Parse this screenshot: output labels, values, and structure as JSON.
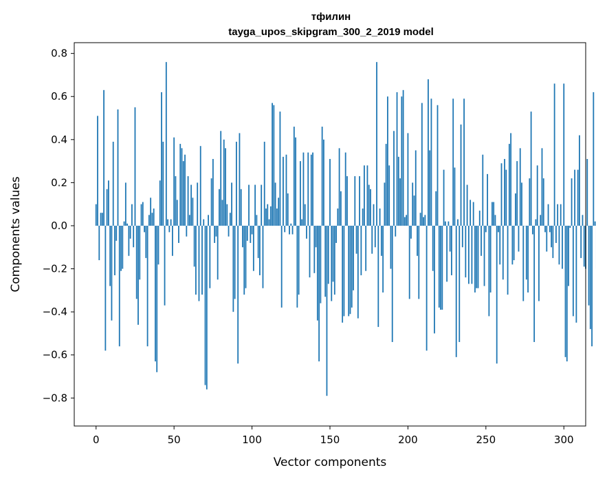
{
  "chart_data": {
    "type": "bar",
    "title": "тфилин",
    "subtitle": "tayga_upos_skipgram_300_2_2019 model",
    "xlabel": "Vector components",
    "ylabel": "Components values",
    "xlim": [
      -14,
      314
    ],
    "ylim": [
      -0.93,
      0.85
    ],
    "xticks": [
      0,
      50,
      100,
      150,
      200,
      250,
      300
    ],
    "yticks": [
      -0.8,
      -0.6,
      -0.4,
      -0.2,
      0.0,
      0.2,
      0.4,
      0.6,
      0.8
    ],
    "ytick_labels": [
      "−0.8",
      "−0.6",
      "−0.4",
      "−0.2",
      "0.0",
      "0.2",
      "0.4",
      "0.6",
      "0.8"
    ],
    "xtick_labels": [
      "0",
      "50",
      "100",
      "150",
      "200",
      "250",
      "300"
    ],
    "grid": false,
    "bar_color": "#1f77b4",
    "values": [
      0.1,
      0.51,
      -0.16,
      0.06,
      0.06,
      0.63,
      -0.58,
      0.17,
      0.21,
      -0.28,
      -0.44,
      0.39,
      -0.23,
      -0.07,
      0.54,
      -0.56,
      -0.21,
      -0.2,
      0.02,
      0.2,
      0.01,
      -0.14,
      -0.06,
      0.1,
      -0.1,
      0.55,
      -0.34,
      -0.46,
      -0.25,
      0.1,
      0.11,
      -0.03,
      -0.15,
      -0.56,
      0.05,
      0.13,
      0.06,
      0.08,
      -0.63,
      -0.68,
      -0.18,
      0.21,
      0.62,
      0.39,
      -0.37,
      0.76,
      0.03,
      -0.03,
      0.03,
      -0.14,
      0.41,
      0.23,
      0.12,
      -0.08,
      0.38,
      0.36,
      0.3,
      0.33,
      -0.05,
      0.23,
      0.05,
      0.19,
      0.13,
      -0.19,
      -0.32,
      0.2,
      -0.35,
      0.37,
      -0.32,
      0.03,
      -0.74,
      -0.76,
      0.05,
      -0.29,
      0.22,
      0.31,
      -0.08,
      -0.05,
      -0.25,
      0.17,
      0.44,
      0.12,
      0.4,
      0.36,
      0.1,
      -0.05,
      0.06,
      0.2,
      -0.4,
      -0.34,
      0.39,
      -0.64,
      0.43,
      0.17,
      -0.1,
      -0.32,
      -0.29,
      -0.07,
      0.19,
      -0.08,
      -0.04,
      -0.21,
      0.19,
      0.05,
      -0.15,
      -0.23,
      0.19,
      -0.29,
      0.39,
      0.08,
      0.1,
      0.03,
      0.09,
      0.57,
      0.56,
      0.2,
      0.08,
      0.13,
      0.53,
      -0.38,
      0.32,
      -0.03,
      0.33,
      0.15,
      -0.04,
      0.01,
      -0.04,
      0.46,
      0.41,
      -0.38,
      -0.32,
      0.3,
      0.03,
      0.34,
      0.1,
      -0.06,
      0.34,
      -0.24,
      0.33,
      0.34,
      -0.22,
      -0.1,
      -0.44,
      -0.63,
      -0.36,
      0.46,
      0.4,
      -0.33,
      -0.79,
      -0.27,
      0.31,
      -0.35,
      -0.26,
      -0.32,
      -0.08,
      0.08,
      0.36,
      0.16,
      -0.45,
      -0.42,
      0.34,
      0.23,
      -0.42,
      -0.41,
      -0.38,
      -0.3,
      0.23,
      -0.13,
      -0.43,
      0.23,
      -0.23,
      0.08,
      0.28,
      -0.21,
      0.28,
      0.19,
      0.17,
      -0.13,
      0.1,
      -0.1,
      0.76,
      -0.47,
      0.08,
      -0.14,
      -0.31,
      0.2,
      0.38,
      0.6,
      0.28,
      -0.2,
      -0.54,
      0.44,
      -0.05,
      0.62,
      0.32,
      0.22,
      0.6,
      0.63,
      0.04,
      0.05,
      0.43,
      -0.34,
      -0.06,
      0.2,
      0.14,
      0.35,
      -0.14,
      -0.34,
      0.06,
      0.57,
      0.04,
      0.05,
      -0.58,
      0.68,
      0.35,
      0.59,
      -0.21,
      -0.5,
      0.16,
      0.56,
      -0.38,
      -0.39,
      -0.39,
      0.26,
      0.02,
      -0.26,
      0.02,
      -0.12,
      -0.23,
      0.59,
      0.27,
      -0.61,
      0.03,
      -0.54,
      0.47,
      -0.1,
      0.59,
      -0.24,
      0.19,
      -0.27,
      0.12,
      -0.27,
      0.11,
      -0.31,
      -0.29,
      -0.29,
      0.07,
      -0.14,
      0.33,
      -0.28,
      -0.03,
      0.24,
      -0.42,
      -0.31,
      0.11,
      0.11,
      0.05,
      -0.64,
      -0.03,
      -0.18,
      0.29,
      -0.25,
      0.31,
      0.26,
      -0.32,
      0.38,
      0.43,
      -0.18,
      -0.16,
      0.15,
      0.3,
      -0.12,
      0.36,
      0.2,
      -0.35,
      0.0,
      -0.25,
      -0.31,
      0.22,
      0.53,
      -0.04,
      -0.54,
      0.03,
      0.28,
      -0.35,
      0.05,
      0.36,
      0.22,
      -0.03,
      -0.12,
      0.1,
      -0.03,
      -0.1,
      -0.15,
      0.66,
      -0.08,
      0.1,
      -0.18,
      0.1,
      -0.2,
      0.66,
      -0.61,
      -0.63,
      -0.28,
      -0.01,
      0.22,
      -0.42,
      0.26,
      -0.45,
      0.26,
      0.42,
      -0.15,
      0.05,
      -0.19,
      -0.2,
      0.31,
      -0.37,
      -0.48,
      -0.56,
      0.62,
      0.02,
      -0.2
    ],
    "bar_width": 0.8
  }
}
